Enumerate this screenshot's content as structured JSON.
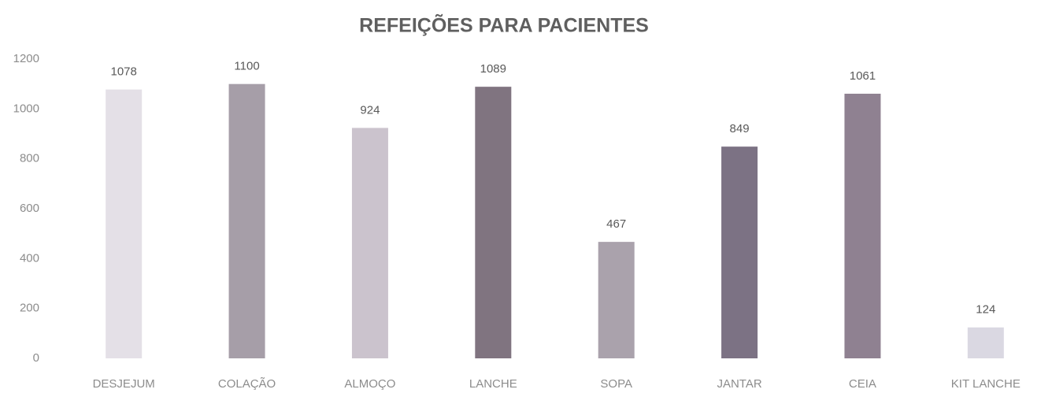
{
  "chart_data": {
    "type": "bar",
    "title": "REFEIÇÕES PARA PACIENTES",
    "categories": [
      "DESJEJUM",
      "COLAÇÃO",
      "ALMOÇO",
      "LANCHE",
      "SOPA",
      "JANTAR",
      "CEIA",
      "KIT LANCHE"
    ],
    "values": [
      1078,
      1100,
      924,
      1089,
      467,
      849,
      1061,
      124
    ],
    "colors": [
      "#e4e0e7",
      "#a69ea8",
      "#cbc3cd",
      "#807480",
      "#aaa2ac",
      "#7c7284",
      "#8f8191",
      "#dad8e2"
    ],
    "ylim": [
      0,
      1200
    ],
    "yticks": [
      0,
      200,
      400,
      600,
      800,
      1000,
      1200
    ],
    "grid": false
  }
}
